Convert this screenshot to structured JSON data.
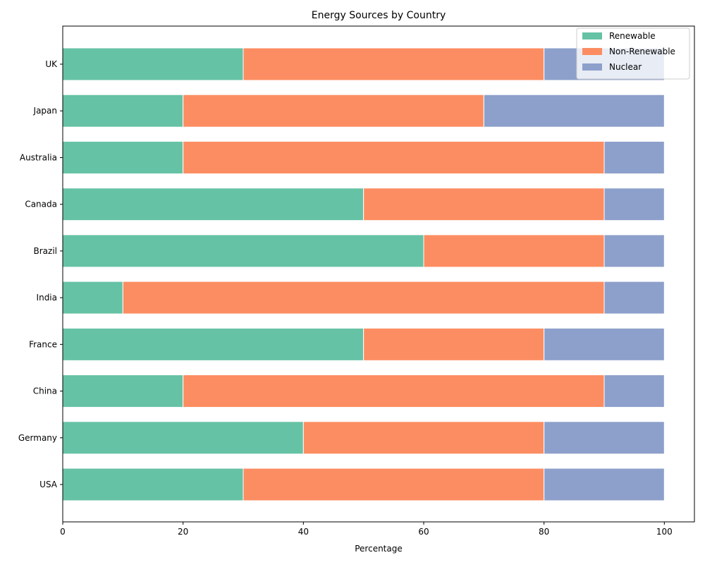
{
  "chart_data": {
    "type": "bar",
    "orientation": "horizontal",
    "stacked": true,
    "title": "Energy Sources by Country",
    "xlabel": "Percentage",
    "ylabel": "",
    "xlim": [
      0,
      105
    ],
    "xticks": [
      0,
      20,
      40,
      60,
      80,
      100
    ],
    "grid": false,
    "legend_position": "top-right",
    "categories": [
      "USA",
      "Germany",
      "China",
      "France",
      "India",
      "Brazil",
      "Canada",
      "Australia",
      "Japan",
      "UK"
    ],
    "series": [
      {
        "name": "Renewable",
        "color": "#66c2a5",
        "values": [
          30,
          40,
          20,
          50,
          10,
          60,
          50,
          20,
          20,
          30
        ]
      },
      {
        "name": "Non-Renewable",
        "color": "#fc8d62",
        "values": [
          50,
          40,
          70,
          30,
          80,
          30,
          40,
          70,
          50,
          50
        ]
      },
      {
        "name": "Nuclear",
        "color": "#8da0cb",
        "values": [
          20,
          20,
          10,
          20,
          10,
          10,
          10,
          10,
          30,
          20
        ]
      }
    ]
  }
}
